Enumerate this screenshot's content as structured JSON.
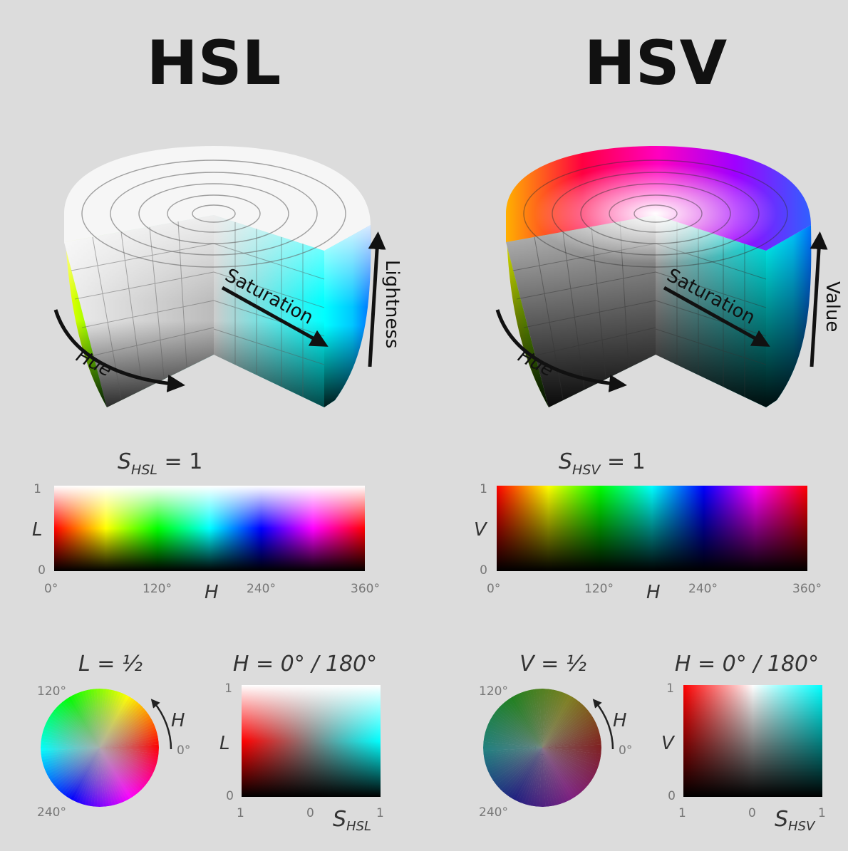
{
  "titles": {
    "left": "HSL",
    "right": "HSV"
  },
  "cylinders": {
    "hsl": {
      "hue_label": "Hue",
      "saturation_label": "Saturation",
      "lightness_label": "Lightness"
    },
    "hsv": {
      "hue_label": "Hue",
      "saturation_label": "Saturation",
      "value_label": "Value"
    }
  },
  "hsl_panel": {
    "caption_main": "S",
    "caption_sub": "HSL",
    "caption_eq": " = 1",
    "y_label": "L",
    "x_label": "H",
    "y_ticks": [
      "1",
      "0"
    ],
    "x_ticks": [
      "0°",
      "120°",
      "240°",
      "360°"
    ]
  },
  "hsv_panel": {
    "caption_main": "S",
    "caption_sub": "HSV",
    "caption_eq": " = 1",
    "y_label": "V",
    "x_label": "H",
    "y_ticks": [
      "1",
      "0"
    ],
    "x_ticks": [
      "0°",
      "120°",
      "240°",
      "360°"
    ]
  },
  "hsl_wheel": {
    "caption": "L = ½",
    "tick_120": "120°",
    "tick_240": "240°",
    "tick_0": "0°",
    "arrow_label": "H"
  },
  "hsv_wheel": {
    "caption": "V = ½",
    "tick_120": "120°",
    "tick_240": "240°",
    "tick_0": "0°",
    "arrow_label": "H"
  },
  "hsl_slice": {
    "caption": "H = 0° / 180°",
    "y_label": "L",
    "y_ticks": [
      "1",
      "0"
    ],
    "x_ticks": [
      "1",
      "0",
      "1"
    ],
    "x_label_main": "S",
    "x_label_sub": "HSL"
  },
  "hsv_slice": {
    "caption": "H = 0° / 180°",
    "y_label": "V",
    "y_ticks": [
      "1",
      "0"
    ],
    "x_ticks": [
      "1",
      "0",
      "1"
    ],
    "x_label_main": "S",
    "x_label_sub": "HSV"
  }
}
